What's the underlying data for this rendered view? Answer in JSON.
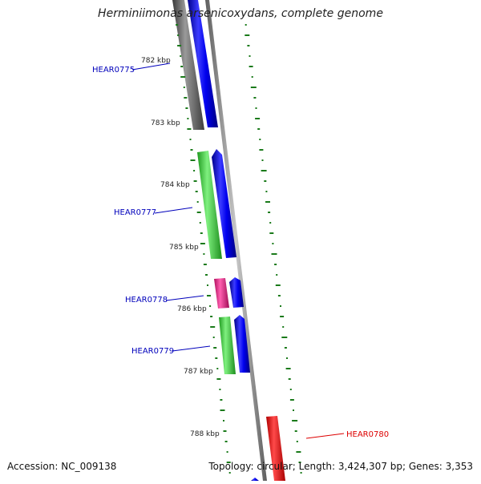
{
  "title": "Herminiimonas arsenicoxydans, complete genome",
  "footer": {
    "accession": "Accession: NC_009138",
    "summary": "Topology: circular; Length: 3,424,307 bp; Genes: 3,353"
  },
  "ticks": [
    "782 kbp",
    "783 kbp",
    "784 kbp",
    "785 kbp",
    "786 kbp",
    "787 kbp",
    "788 kbp"
  ],
  "gene_labels": [
    {
      "name": "HEAR0775",
      "color": "#0000bb"
    },
    {
      "name": "HEAR0777",
      "color": "#0000bb"
    },
    {
      "name": "HEAR0778",
      "color": "#0000bb"
    },
    {
      "name": "HEAR0779",
      "color": "#0000bb"
    },
    {
      "name": "HEAR0780",
      "color": "#dd0000"
    }
  ],
  "colors": {
    "backbone": "#8c8c8c",
    "cds": "#0000ee",
    "gene_gray": "#6e6e6e",
    "gene_green": "#33cc33",
    "gene_magenta": "#ee1a8c",
    "gene_red": "#ee0000",
    "gc_dots": "#1a7a1a"
  }
}
